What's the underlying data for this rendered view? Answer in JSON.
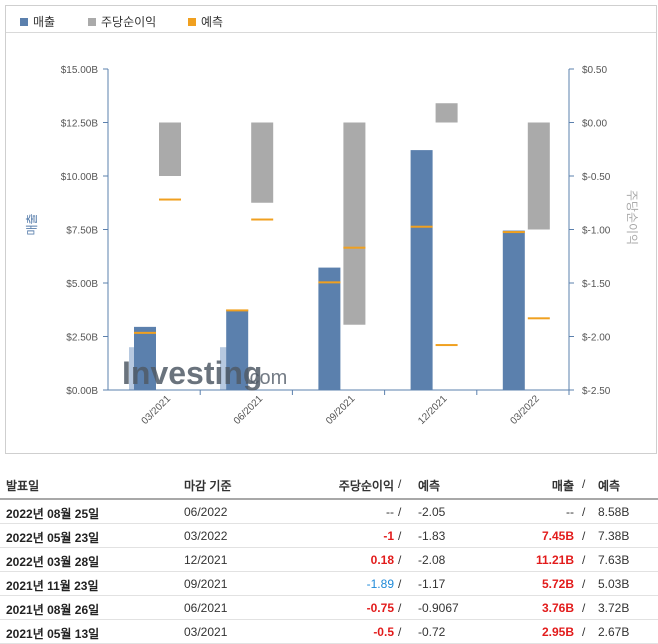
{
  "legend": [
    {
      "label": "매출",
      "color": "#5b80ad"
    },
    {
      "label": "주당순이익",
      "color": "#aaaaaa"
    },
    {
      "label": "예측",
      "color": "#f0a020"
    }
  ],
  "chart_data": {
    "type": "bar",
    "categories": [
      "03/2021",
      "06/2021",
      "09/2021",
      "12/2021",
      "03/2022"
    ],
    "series": [
      {
        "name": "매출",
        "axis": "left",
        "values": [
          2.95,
          3.76,
          5.72,
          11.21,
          7.45
        ],
        "forecast": [
          2.67,
          3.72,
          5.03,
          7.63,
          7.38
        ]
      },
      {
        "name": "주당순이익",
        "axis": "right",
        "values": [
          -0.5,
          -0.75,
          -1.89,
          0.18,
          -1
        ],
        "forecast": [
          -0.72,
          -0.9067,
          -1.17,
          -2.08,
          -1.83
        ]
      }
    ],
    "y_left": {
      "label": "매출",
      "ticks": [
        "$15.00B",
        "$12.50B",
        "$10.00B",
        "$7.50B",
        "$5.00B",
        "$2.50B",
        "$0.00B"
      ],
      "range": [
        0,
        15
      ]
    },
    "y_right": {
      "label": "주당순이익",
      "ticks": [
        "$0.50",
        "$0.00",
        "$-0.50",
        "$-1.00",
        "$-1.50",
        "$-2.00",
        "$-2.50"
      ],
      "range": [
        -2.5,
        0.5
      ]
    },
    "colors": {
      "revenue": "#5b80ad",
      "eps": "#aaaaaa",
      "forecast": "#f0a020",
      "axis": "#5b80ad"
    }
  },
  "watermark": "Investing.com",
  "table": {
    "headers": {
      "date": "발표일",
      "period": "마감 기준",
      "eps": "주당순이익",
      "sep1": "/",
      "eps_forecast": "예측",
      "revenue": "매출",
      "sep2": "/",
      "revenue_forecast": "예측"
    },
    "rows": [
      {
        "date": "2022년 08월 25일",
        "period": "06/2022",
        "eps": "--",
        "eps_style": "plain",
        "sep1": "/",
        "eps_forecast": "-2.05",
        "revenue": "--",
        "revenue_style": "plain",
        "sep2": "/",
        "revenue_forecast": "8.58B"
      },
      {
        "date": "2022년 05월 23일",
        "period": "03/2022",
        "eps": "-1",
        "eps_style": "neg",
        "sep1": "/",
        "eps_forecast": "-1.83",
        "revenue": "7.45B",
        "revenue_style": "bold-red",
        "sep2": "/",
        "revenue_forecast": "7.38B"
      },
      {
        "date": "2022년 03월 28일",
        "period": "12/2021",
        "eps": "0.18",
        "eps_style": "neg",
        "sep1": "/",
        "eps_forecast": "-2.08",
        "revenue": "11.21B",
        "revenue_style": "bold-red",
        "sep2": "/",
        "revenue_forecast": "7.63B"
      },
      {
        "date": "2021년 11월 23일",
        "period": "09/2021",
        "eps": "-1.89",
        "eps_style": "pos-blue",
        "sep1": "/",
        "eps_forecast": "-1.17",
        "revenue": "5.72B",
        "revenue_style": "bold-red",
        "sep2": "/",
        "revenue_forecast": "5.03B"
      },
      {
        "date": "2021년 08월 26일",
        "period": "06/2021",
        "eps": "-0.75",
        "eps_style": "neg",
        "sep1": "/",
        "eps_forecast": "-0.9067",
        "revenue": "3.76B",
        "revenue_style": "bold-red",
        "sep2": "/",
        "revenue_forecast": "3.72B"
      },
      {
        "date": "2021년 05월 13일",
        "period": "03/2021",
        "eps": "-0.5",
        "eps_style": "neg",
        "sep1": "/",
        "eps_forecast": "-0.72",
        "revenue": "2.95B",
        "revenue_style": "bold-red",
        "sep2": "/",
        "revenue_forecast": "2.67B"
      }
    ]
  }
}
